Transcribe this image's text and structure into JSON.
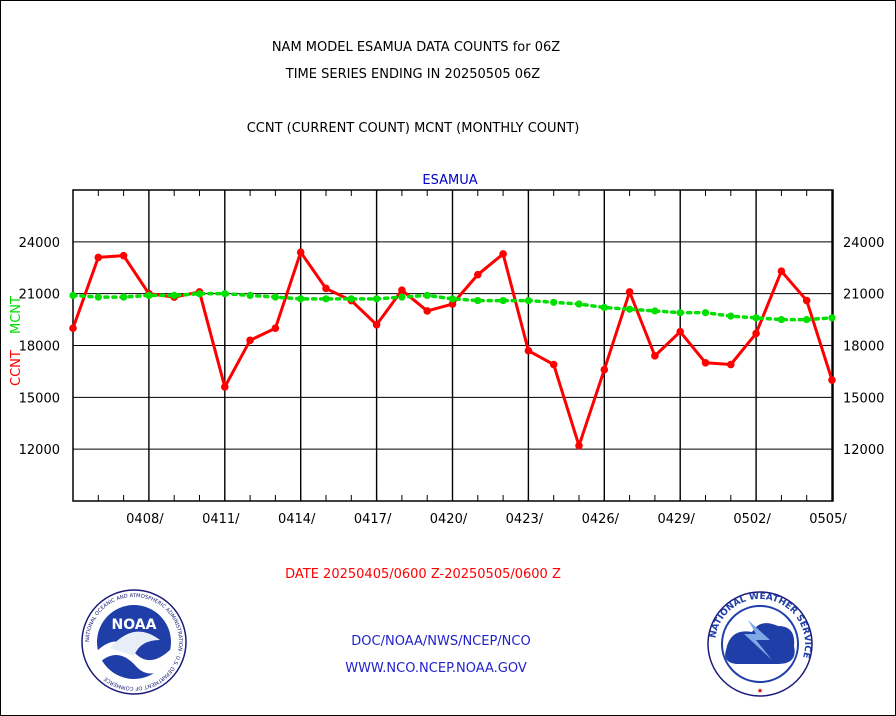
{
  "header": {
    "title_line1": "NAM MODEL ESAMUA DATA COUNTS for 06Z",
    "title_line2": "TIME SERIES ENDING IN 20250505 06Z",
    "subtitle": "CCNT (CURRENT COUNT) MCNT (MONTHLY COUNT)"
  },
  "footer": {
    "date_range": "DATE 20250405/0600 Z-20250505/0600 Z",
    "org_path": "DOC/NOAA/NWS/NCEP/NCO",
    "website": "WWW.NCO.NCEP.NOAA.GOV"
  },
  "logos": {
    "left_text": "NOAA",
    "left_ring": "NATIONAL OCEANIC AND ATMOSPHERIC ADMINISTRATION · U.S. DEPARTMENT OF COMMERCE",
    "right_ring": "NATIONAL WEATHER SERVICE"
  },
  "colors": {
    "ccnt": "#ff0000",
    "mcnt": "#00e000",
    "station": "#0000cc",
    "footer_link": "#2222cc"
  },
  "chart_data": {
    "type": "line",
    "station_label": "ESAMUA",
    "ylabel_left_ccnt": "CCNT",
    "ylabel_left_mcnt": "MCNT",
    "ylim": [
      9000,
      27000
    ],
    "yticks": [
      12000,
      15000,
      18000,
      21000,
      24000
    ],
    "ytick_labels": [
      "12000",
      "15000",
      "18000",
      "21000",
      "24000"
    ],
    "xlim": [
      0,
      30.3
    ],
    "xticks": [
      3,
      6,
      9,
      12,
      15,
      18,
      21,
      24,
      27,
      30
    ],
    "xtick_labels": [
      "0408/",
      "0411/",
      "0414/",
      "0417/",
      "0420/",
      "0423/",
      "0426/",
      "0429/",
      "0502/",
      "0505/"
    ],
    "grid": true,
    "series": [
      {
        "name": "CCNT",
        "color": "#ff0000",
        "x": [
          0,
          1,
          2,
          3,
          4,
          5,
          6,
          7,
          8,
          9,
          10,
          11,
          12,
          13,
          14,
          15,
          16,
          17,
          18,
          19,
          20,
          21,
          22,
          23,
          24,
          25,
          26,
          27,
          28,
          29,
          30
        ],
        "values": [
          19000,
          23100,
          23200,
          21000,
          20800,
          21100,
          15600,
          18300,
          19000,
          23400,
          21300,
          20600,
          19200,
          21200,
          20000,
          20400,
          22100,
          23300,
          17700,
          16900,
          12200,
          16600,
          21100,
          17400,
          18800,
          17000,
          16900,
          18700,
          22300,
          20600,
          16000
        ]
      },
      {
        "name": "MCNT",
        "color": "#00e000",
        "x": [
          0,
          1,
          2,
          3,
          4,
          5,
          6,
          7,
          8,
          9,
          10,
          11,
          12,
          13,
          14,
          15,
          16,
          17,
          18,
          19,
          20,
          21,
          22,
          23,
          24,
          25,
          26,
          27,
          28,
          29,
          30
        ],
        "values": [
          20900,
          20800,
          20800,
          20900,
          20900,
          21000,
          21000,
          20900,
          20800,
          20700,
          20700,
          20700,
          20700,
          20800,
          20900,
          20700,
          20600,
          20600,
          20600,
          20500,
          20400,
          20200,
          20100,
          20000,
          19900,
          19900,
          19700,
          19600,
          19500,
          19500,
          19600
        ]
      }
    ]
  }
}
